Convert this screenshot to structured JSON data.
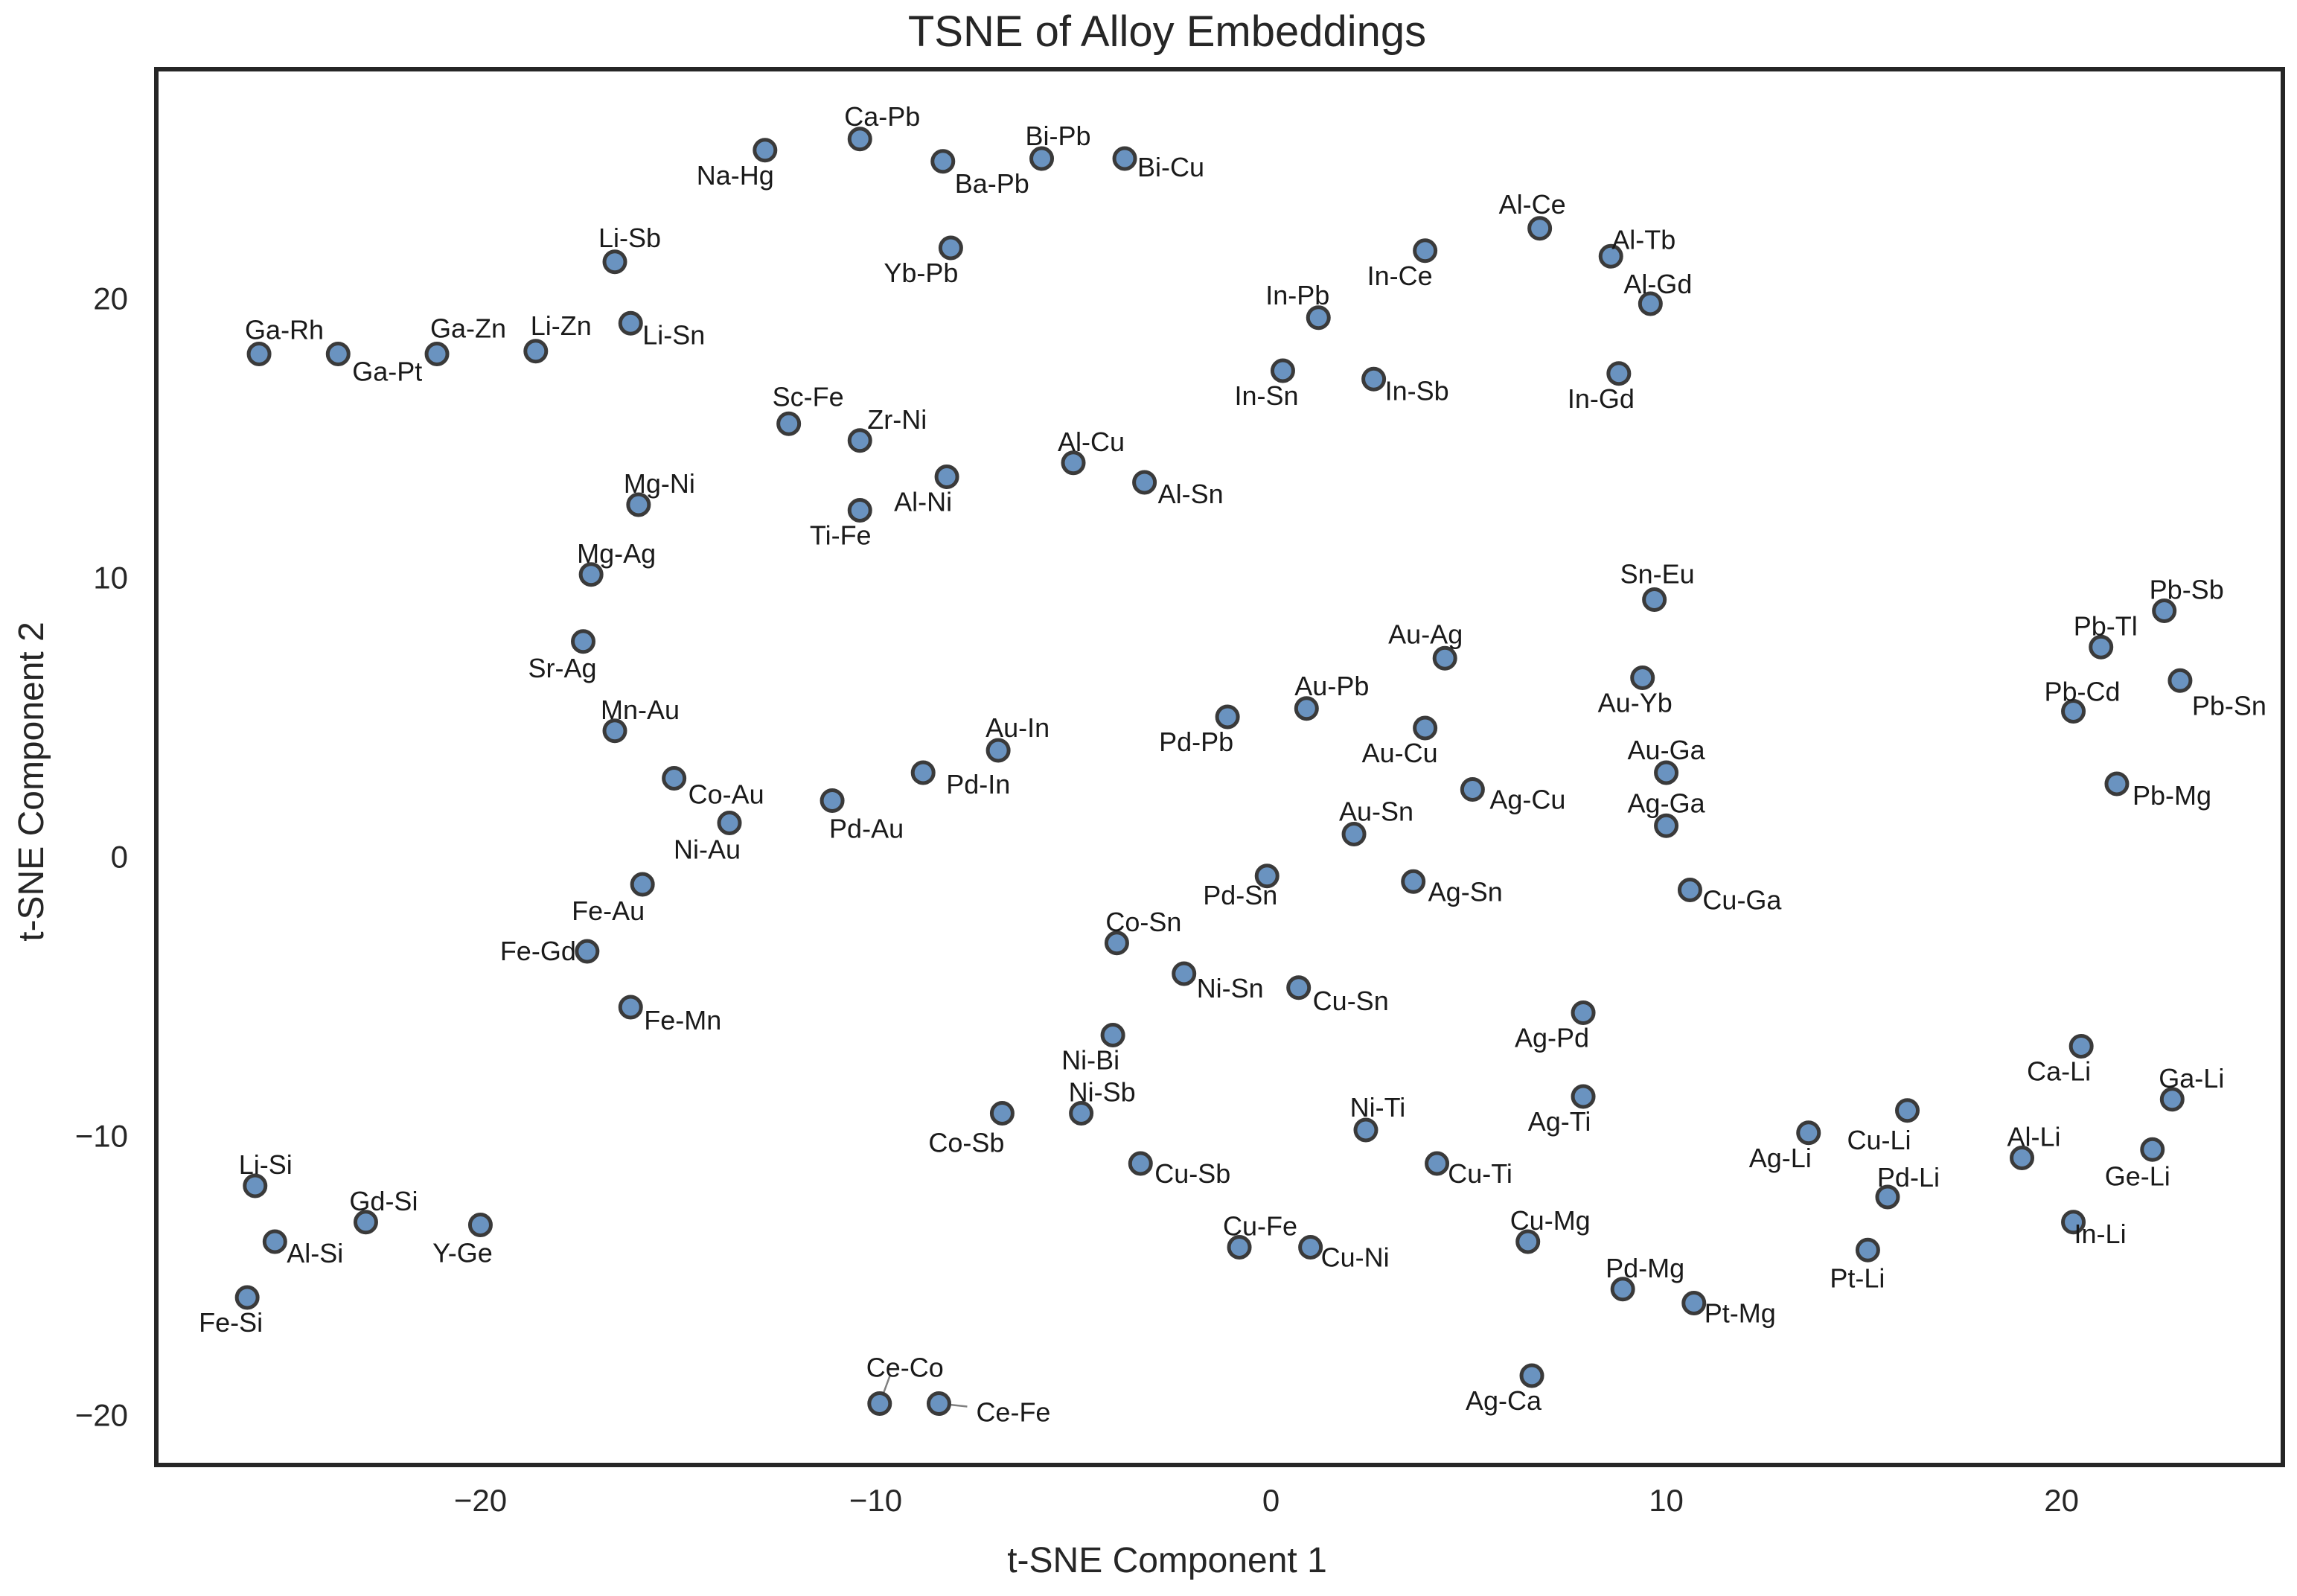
{
  "chart_data": {
    "type": "scatter",
    "title": "TSNE of Alloy Embeddings",
    "xlabel": "t-SNE Component 1",
    "ylabel": "t-SNE Component 2",
    "xlim": [
      -28.2,
      25.6
    ],
    "ylim": [
      -21.8,
      28.2
    ],
    "xticks": [
      -20,
      -10,
      0,
      10,
      20
    ],
    "yticks": [
      20,
      10,
      0,
      -10,
      -20
    ],
    "xtick_labels": [
      "−20",
      "−10",
      "0",
      "10",
      "20"
    ],
    "ytick_labels": [
      "20",
      "10",
      "0",
      "−10",
      "−20"
    ],
    "grid": false,
    "legend": "none",
    "colors": {
      "marker_fill": "#6a93c0",
      "marker_edge": "#3a3a3a",
      "frame": "#262626",
      "text": "#262626"
    },
    "points": [
      {
        "label": "Na-Hg",
        "x": -12.8,
        "y": 25.3
      },
      {
        "label": "Ca-Pb",
        "x": -10.4,
        "y": 25.7
      },
      {
        "label": "Ba-Pb",
        "x": -8.3,
        "y": 24.9
      },
      {
        "label": "Bi-Pb",
        "x": -5.8,
        "y": 25.0
      },
      {
        "label": "Bi-Cu",
        "x": -3.7,
        "y": 25.0
      },
      {
        "label": "Yb-Pb",
        "x": -8.1,
        "y": 21.8
      },
      {
        "label": "Li-Sb",
        "x": -16.6,
        "y": 21.3
      },
      {
        "label": "Ga-Rh",
        "x": -25.6,
        "y": 18.0
      },
      {
        "label": "Ga-Pt",
        "x": -23.6,
        "y": 18.0
      },
      {
        "label": "Ga-Zn",
        "x": -21.1,
        "y": 18.0
      },
      {
        "label": "Li-Zn",
        "x": -18.6,
        "y": 18.1
      },
      {
        "label": "Li-Sn",
        "x": -16.2,
        "y": 19.1
      },
      {
        "label": "Sc-Fe",
        "x": -12.2,
        "y": 15.5
      },
      {
        "label": "Zr-Ni",
        "x": -10.4,
        "y": 14.9
      },
      {
        "label": "Ti-Fe",
        "x": -10.4,
        "y": 12.4
      },
      {
        "label": "Al-Ni",
        "x": -8.2,
        "y": 13.6
      },
      {
        "label": "Al-Cu",
        "x": -5.0,
        "y": 14.1
      },
      {
        "label": "Al-Sn",
        "x": -3.2,
        "y": 13.4
      },
      {
        "label": "Mg-Ni",
        "x": -16.0,
        "y": 12.6
      },
      {
        "label": "Mg-Ag",
        "x": -17.2,
        "y": 10.1
      },
      {
        "label": "Sr-Ag",
        "x": -17.4,
        "y": 7.7
      },
      {
        "label": "Mn-Au",
        "x": -16.6,
        "y": 4.5
      },
      {
        "label": "Co-Au",
        "x": -15.1,
        "y": 2.8
      },
      {
        "label": "Ni-Au",
        "x": -13.7,
        "y": 1.2
      },
      {
        "label": "Pd-Au",
        "x": -11.1,
        "y": 2.0
      },
      {
        "label": "Pd-In",
        "x": -8.8,
        "y": 3.0
      },
      {
        "label": "Au-In",
        "x": -6.9,
        "y": 3.8
      },
      {
        "label": "Fe-Au",
        "x": -15.9,
        "y": -1.0
      },
      {
        "label": "Fe-Gd",
        "x": -17.3,
        "y": -3.4
      },
      {
        "label": "Fe-Mn",
        "x": -16.2,
        "y": -5.4
      },
      {
        "label": "In-Ce",
        "x": 3.9,
        "y": 21.7
      },
      {
        "label": "In-Pb",
        "x": 1.2,
        "y": 19.3
      },
      {
        "label": "In-Sn",
        "x": 0.3,
        "y": 17.4
      },
      {
        "label": "In-Sb",
        "x": 2.6,
        "y": 17.1
      },
      {
        "label": "Al-Ce",
        "x": 6.8,
        "y": 22.5
      },
      {
        "label": "Al-Tb",
        "x": 8.6,
        "y": 21.5
      },
      {
        "label": "Al-Gd",
        "x": 9.6,
        "y": 19.8
      },
      {
        "label": "In-Gd",
        "x": 8.8,
        "y": 17.3
      },
      {
        "label": "Sn-Eu",
        "x": 9.7,
        "y": 9.2
      },
      {
        "label": "Au-Ag",
        "x": 4.4,
        "y": 7.1
      },
      {
        "label": "Au-Yb",
        "x": 9.4,
        "y": 6.4
      },
      {
        "label": "Au-Pb",
        "x": 0.9,
        "y": 5.3
      },
      {
        "label": "Pd-Pb",
        "x": -1.1,
        "y": 5.0
      },
      {
        "label": "Au-Cu",
        "x": 3.9,
        "y": 4.6
      },
      {
        "label": "Ag-Cu",
        "x": 5.1,
        "y": 2.4
      },
      {
        "label": "Au-Ga",
        "x": 10.0,
        "y": 3.0
      },
      {
        "label": "Ag-Ga",
        "x": 10.0,
        "y": 1.1
      },
      {
        "label": "Au-Sn",
        "x": 2.1,
        "y": 0.8
      },
      {
        "label": "Pd-Sn",
        "x": -0.1,
        "y": -0.7
      },
      {
        "label": "Ag-Sn",
        "x": 3.6,
        "y": -0.9
      },
      {
        "label": "Cu-Ga",
        "x": 10.6,
        "y": -1.2
      },
      {
        "label": "Co-Sn",
        "x": -3.9,
        "y": -3.1
      },
      {
        "label": "Ni-Sn",
        "x": -2.2,
        "y": -4.2
      },
      {
        "label": "Cu-Sn",
        "x": 0.7,
        "y": -4.7
      },
      {
        "label": "Ni-Bi",
        "x": -4.0,
        "y": -6.4
      },
      {
        "label": "Ni-Sb",
        "x": -4.8,
        "y": -9.2
      },
      {
        "label": "Co-Sb",
        "x": -6.8,
        "y": -9.2
      },
      {
        "label": "Cu-Sb",
        "x": -3.3,
        "y": -11.0
      },
      {
        "label": "Ag-Pd",
        "x": 7.9,
        "y": -5.6
      },
      {
        "label": "Ag-Ti",
        "x": 7.9,
        "y": -8.6
      },
      {
        "label": "Ni-Ti",
        "x": 2.4,
        "y": -9.8
      },
      {
        "label": "Cu-Ti",
        "x": 4.2,
        "y": -11.0
      },
      {
        "label": "Cu-Fe",
        "x": -0.8,
        "y": -14.0
      },
      {
        "label": "Cu-Ni",
        "x": 1.0,
        "y": -14.0
      },
      {
        "label": "Cu-Mg",
        "x": 6.5,
        "y": -13.8
      },
      {
        "label": "Pd-Mg",
        "x": 8.9,
        "y": -15.5
      },
      {
        "label": "Pt-Mg",
        "x": 10.7,
        "y": -16.0
      },
      {
        "label": "Ag-Ca",
        "x": 6.6,
        "y": -18.6
      },
      {
        "label": "Ce-Co",
        "x": -9.9,
        "y": -19.6
      },
      {
        "label": "Ce-Fe",
        "x": -8.4,
        "y": -19.6
      },
      {
        "label": "Li-Si",
        "x": -25.7,
        "y": -11.8
      },
      {
        "label": "Gd-Si",
        "x": -22.9,
        "y": -13.1
      },
      {
        "label": "Al-Si",
        "x": -25.2,
        "y": -13.8
      },
      {
        "label": "Y-Ge",
        "x": -20.0,
        "y": -13.2
      },
      {
        "label": "Fe-Si",
        "x": -25.9,
        "y": -15.8
      },
      {
        "label": "Ag-Li",
        "x": 13.6,
        "y": -9.9
      },
      {
        "label": "Cu-Li",
        "x": 16.1,
        "y": -9.1
      },
      {
        "label": "Pd-Li",
        "x": 15.6,
        "y": -12.2
      },
      {
        "label": "Pt-Li",
        "x": 15.1,
        "y": -14.1
      },
      {
        "label": "Al-Li",
        "x": 19.0,
        "y": -10.8
      },
      {
        "label": "Ca-Li",
        "x": 20.5,
        "y": -6.8
      },
      {
        "label": "Ga-Li",
        "x": 22.8,
        "y": -8.7
      },
      {
        "label": "Ge-Li",
        "x": 22.3,
        "y": -10.5
      },
      {
        "label": "In-Li",
        "x": 20.3,
        "y": -13.1
      },
      {
        "label": "Pb-Sb",
        "x": 22.6,
        "y": 8.8
      },
      {
        "label": "Pb-Tl",
        "x": 21.0,
        "y": 7.5
      },
      {
        "label": "Pb-Cd",
        "x": 20.3,
        "y": 5.2
      },
      {
        "label": "Pb-Sn",
        "x": 23.0,
        "y": 6.3
      },
      {
        "label": "Pb-Mg",
        "x": 21.4,
        "y": 2.6
      }
    ]
  }
}
